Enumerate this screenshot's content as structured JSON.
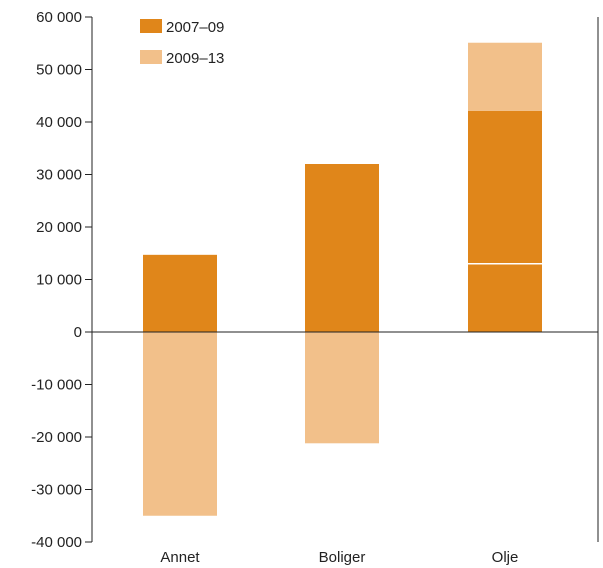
{
  "chart_data": {
    "type": "bar",
    "stacked": true,
    "categories": [
      "Annet",
      "Boliger",
      "Olje"
    ],
    "series": [
      {
        "name": "2007–09",
        "color": "#e0861a",
        "values": [
          14700,
          32000,
          42100
        ]
      },
      {
        "name": "2009–13",
        "color": "#f2c08a",
        "values": [
          -35000,
          -21200,
          13000
        ]
      }
    ],
    "ylim": [
      -40000,
      60000
    ],
    "yticks": [
      60000,
      50000,
      40000,
      30000,
      20000,
      10000,
      0,
      -10000,
      -20000,
      -30000,
      -40000
    ],
    "ytick_labels": [
      "60 000",
      "50 000",
      "40 000",
      "30 000",
      "20 000",
      "10 000",
      "0",
      "-10 000",
      "-20 000",
      "-30 000",
      "-40 000"
    ],
    "legend_position": "top-left",
    "grid": false,
    "title": "",
    "xlabel": "",
    "ylabel": ""
  }
}
